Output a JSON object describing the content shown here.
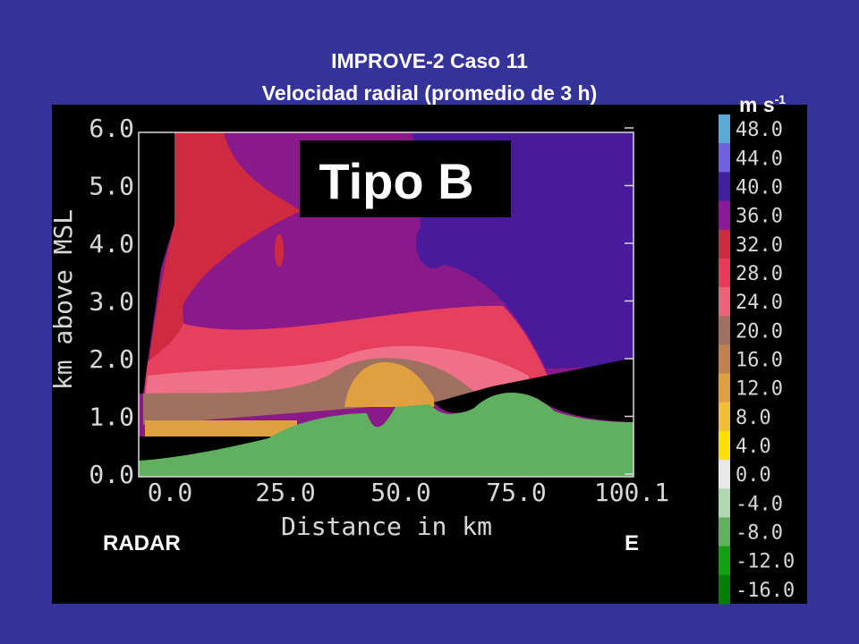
{
  "title": [
    "IMPROVE-2  Caso 11",
    "Velocidad radial (promedio de 3 h)"
  ],
  "annotation": "Tipo B",
  "units": {
    "base": "m s",
    "exponent": "-1"
  },
  "y_axis": {
    "label": "km above MSL",
    "ticks": [
      "0.0",
      "1.0",
      "2.0",
      "3.0",
      "4.0",
      "5.0",
      "6.0"
    ]
  },
  "x_axis": {
    "label": "Distance in km",
    "ticks": [
      "0.0",
      "25.0",
      "50.0",
      "75.0",
      "100.1"
    ]
  },
  "colorbar": {
    "labels": [
      "48.0",
      "44.0",
      "40.0",
      "36.0",
      "32.0",
      "28.0",
      "24.0",
      "20.0",
      "16.0",
      "12.0",
      "8.0",
      "4.0",
      "0.0",
      "-4.0",
      "-8.0",
      "-12.0",
      "-16.0"
    ]
  },
  "footer": {
    "left": "RADAR",
    "right": "E"
  }
}
